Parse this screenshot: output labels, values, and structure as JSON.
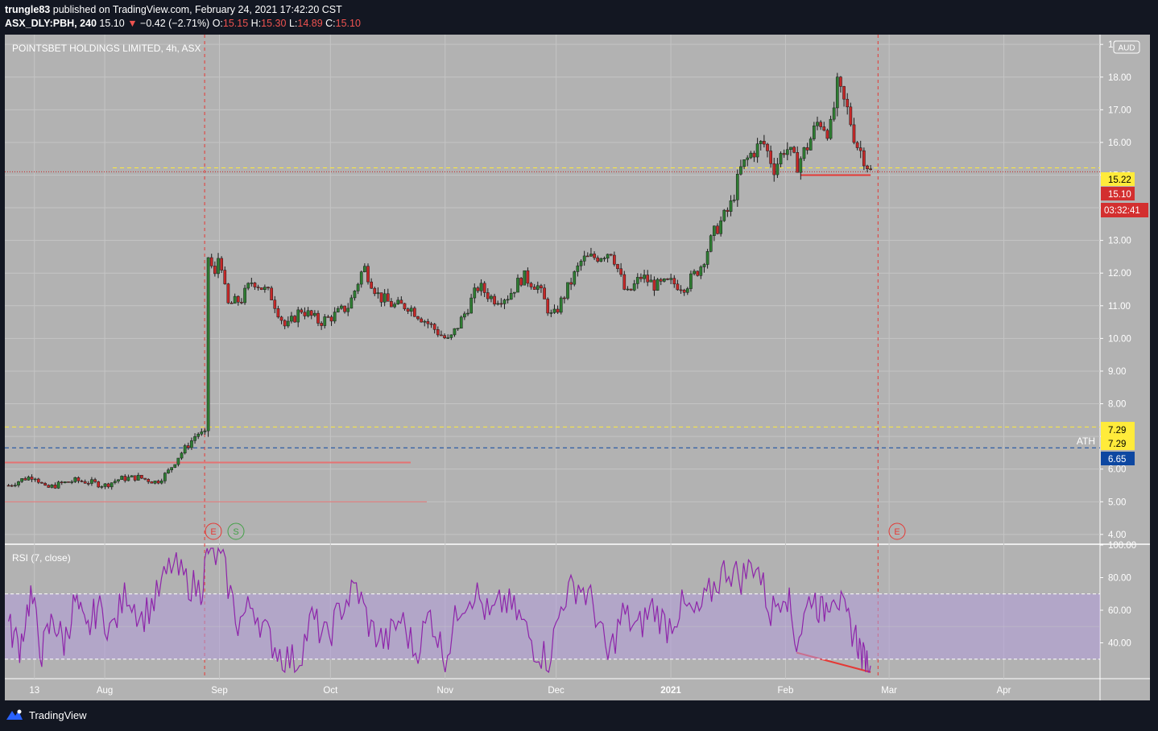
{
  "header": {
    "publisher": "trungle83",
    "published_text": "published on TradingView.com, February 24, 2021 17:42:20 CST",
    "symbol": "ASX_DLY:PBH, 240",
    "last": "15.10",
    "change": "−0.42 (−2.71%)",
    "o_label": "O:",
    "o_val": "15.15",
    "h_label": "H:",
    "h_val": "15.30",
    "l_label": "L:",
    "l_val": "14.89",
    "c_label": "C:",
    "c_val": "15.10"
  },
  "legend": {
    "main": "POINTSBET HOLDINGS LIMITED, 4h, ASX",
    "rsi": "RSI (7, close)",
    "currency": "AUD",
    "ath": "ATH"
  },
  "events": {
    "earnings": "E",
    "split": "S"
  },
  "badges": {
    "level_high": "15.22",
    "last_price": "15.10",
    "countdown": "03:32:41",
    "level_low_1": "7.29",
    "level_low_2": "7.29",
    "ath_level": "6.65"
  },
  "footer": {
    "brand": "TradingView"
  },
  "colors": {
    "background": "#b2b2b2",
    "up": "#2e7d32",
    "down": "#c62828",
    "rsi_line": "#8e24aa",
    "rsi_band": "#b39ddb",
    "yellow": "#ffeb3b",
    "red_badge": "#d32f2f",
    "blue_badge": "#0d47a1"
  },
  "chart_data": [
    {
      "type": "candlestick",
      "title": "POINTSBET HOLDINGS LIMITED, 4h, ASX",
      "y_ticks": [
        "19.00",
        "18.00",
        "17.00",
        "16.00",
        "15.00",
        "14.00",
        "13.00",
        "12.00",
        "11.00",
        "10.00",
        "9.00",
        "8.00",
        "7.00",
        "6.00",
        "5.00",
        "4.00"
      ],
      "ylim": [
        3.7,
        19.3
      ],
      "x_ticks": [
        "13",
        "Aug",
        "Sep",
        "Oct",
        "Nov",
        "Dec",
        "2021",
        "Feb",
        "Mar",
        "Apr"
      ],
      "x_dates": [
        "2020-07-13",
        "2020-08-01",
        "2020-09-01",
        "2020-10-01",
        "2020-11-01",
        "2020-12-01",
        "2021-01-01",
        "2021-02-01",
        "2021-03-01",
        "2021-04-01"
      ],
      "xlim": [
        "2020-07-05",
        "2021-04-27"
      ],
      "close_path": [
        [
          "2020-07-06",
          5.5
        ],
        [
          "2020-07-10",
          5.7
        ],
        [
          "2020-07-13",
          5.8
        ],
        [
          "2020-07-16",
          5.4
        ],
        [
          "2020-07-20",
          5.55
        ],
        [
          "2020-07-24",
          5.65
        ],
        [
          "2020-07-28",
          5.6
        ],
        [
          "2020-08-01",
          5.5
        ],
        [
          "2020-08-05",
          5.7
        ],
        [
          "2020-08-10",
          5.75
        ],
        [
          "2020-08-15",
          5.6
        ],
        [
          "2020-08-18",
          5.9
        ],
        [
          "2020-08-21",
          6.4
        ],
        [
          "2020-08-24",
          6.8
        ],
        [
          "2020-08-26",
          7.1
        ],
        [
          "2020-08-28",
          7.05
        ],
        [
          "2020-08-29",
          12.5
        ],
        [
          "2020-08-31",
          11.8
        ],
        [
          "2020-09-01",
          12.8
        ],
        [
          "2020-09-03",
          11.0
        ],
        [
          "2020-09-07",
          11.2
        ],
        [
          "2020-09-10",
          11.8
        ],
        [
          "2020-09-15",
          11.3
        ],
        [
          "2020-09-19",
          10.3
        ],
        [
          "2020-09-23",
          10.9
        ],
        [
          "2020-09-28",
          10.5
        ],
        [
          "2020-10-02",
          10.7
        ],
        [
          "2020-10-06",
          11.0
        ],
        [
          "2020-10-10",
          12.2
        ],
        [
          "2020-10-14",
          11.3
        ],
        [
          "2020-10-18",
          11.0
        ],
        [
          "2020-10-22",
          11.0
        ],
        [
          "2020-10-26",
          10.6
        ],
        [
          "2020-10-30",
          10.2
        ],
        [
          "2020-11-02",
          9.9
        ],
        [
          "2020-11-06",
          10.7
        ],
        [
          "2020-11-10",
          11.6
        ],
        [
          "2020-11-14",
          11.2
        ],
        [
          "2020-11-18",
          11.3
        ],
        [
          "2020-11-22",
          11.9
        ],
        [
          "2020-11-26",
          11.6
        ],
        [
          "2020-11-30",
          10.6
        ],
        [
          "2020-12-04",
          11.5
        ],
        [
          "2020-12-08",
          12.4
        ],
        [
          "2020-12-12",
          12.5
        ],
        [
          "2020-12-16",
          12.7
        ],
        [
          "2020-12-20",
          11.3
        ],
        [
          "2020-12-24",
          11.9
        ],
        [
          "2020-12-28",
          11.6
        ],
        [
          "2021-01-01",
          11.7
        ],
        [
          "2021-01-05",
          11.6
        ],
        [
          "2021-01-09",
          12.2
        ],
        [
          "2021-01-13",
          13.3
        ],
        [
          "2021-01-17",
          14.0
        ],
        [
          "2021-01-20",
          15.2
        ],
        [
          "2021-01-23",
          15.7
        ],
        [
          "2021-01-26",
          16.0
        ],
        [
          "2021-01-29",
          15.2
        ],
        [
          "2021-02-01",
          15.9
        ],
        [
          "2021-02-04",
          15.3
        ],
        [
          "2021-02-07",
          15.9
        ],
        [
          "2021-02-10",
          16.7
        ],
        [
          "2021-02-13",
          16.3
        ],
        [
          "2021-02-15",
          17.7
        ],
        [
          "2021-02-18",
          16.9
        ],
        [
          "2021-02-20",
          16.0
        ],
        [
          "2021-02-22",
          15.6
        ],
        [
          "2021-02-24",
          15.1
        ]
      ],
      "levels": [
        15.22,
        15.1,
        7.29,
        6.65,
        6.2,
        5.0
      ]
    },
    {
      "type": "line",
      "title": "RSI (7, close)",
      "y_ticks": [
        "100.00",
        "80.00",
        "60.00",
        "40.00"
      ],
      "ylim": [
        18,
        100
      ],
      "band": [
        30,
        70
      ],
      "values": [
        [
          "2020-07-06",
          50
        ],
        [
          "2020-07-09",
          38
        ],
        [
          "2020-07-12",
          70
        ],
        [
          "2020-07-15",
          34
        ],
        [
          "2020-07-18",
          55
        ],
        [
          "2020-07-21",
          40
        ],
        [
          "2020-07-24",
          66
        ],
        [
          "2020-07-27",
          45
        ],
        [
          "2020-07-30",
          62
        ],
        [
          "2020-08-03",
          48
        ],
        [
          "2020-08-07",
          72
        ],
        [
          "2020-08-11",
          55
        ],
        [
          "2020-08-15",
          68
        ],
        [
          "2020-08-19",
          88
        ],
        [
          "2020-08-23",
          78
        ],
        [
          "2020-08-27",
          72
        ],
        [
          "2020-08-29",
          98
        ],
        [
          "2020-09-02",
          88
        ],
        [
          "2020-09-06",
          52
        ],
        [
          "2020-09-10",
          64
        ],
        [
          "2020-09-14",
          44
        ],
        [
          "2020-09-18",
          32
        ],
        [
          "2020-09-22",
          28
        ],
        [
          "2020-09-26",
          55
        ],
        [
          "2020-09-30",
          42
        ],
        [
          "2020-10-04",
          62
        ],
        [
          "2020-10-08",
          74
        ],
        [
          "2020-10-12",
          48
        ],
        [
          "2020-10-16",
          40
        ],
        [
          "2020-10-20",
          55
        ],
        [
          "2020-10-24",
          34
        ],
        [
          "2020-10-28",
          58
        ],
        [
          "2020-11-01",
          30
        ],
        [
          "2020-11-05",
          64
        ],
        [
          "2020-11-09",
          72
        ],
        [
          "2020-11-13",
          55
        ],
        [
          "2020-11-17",
          66
        ],
        [
          "2020-11-21",
          56
        ],
        [
          "2020-11-25",
          38
        ],
        [
          "2020-11-29",
          30
        ],
        [
          "2020-12-03",
          68
        ],
        [
          "2020-12-07",
          76
        ],
        [
          "2020-12-11",
          64
        ],
        [
          "2020-12-15",
          30
        ],
        [
          "2020-12-19",
          58
        ],
        [
          "2020-12-23",
          48
        ],
        [
          "2020-12-27",
          62
        ],
        [
          "2020-12-31",
          50
        ],
        [
          "2021-01-04",
          62
        ],
        [
          "2021-01-08",
          56
        ],
        [
          "2021-01-12",
          72
        ],
        [
          "2021-01-16",
          86
        ],
        [
          "2021-01-20",
          80
        ],
        [
          "2021-01-24",
          90
        ],
        [
          "2021-01-28",
          58
        ],
        [
          "2021-02-01",
          75
        ],
        [
          "2021-02-04",
          40
        ],
        [
          "2021-02-08",
          70
        ],
        [
          "2021-02-11",
          58
        ],
        [
          "2021-02-14",
          74
        ],
        [
          "2021-02-17",
          56
        ],
        [
          "2021-02-20",
          44
        ],
        [
          "2021-02-22",
          30
        ],
        [
          "2021-02-24",
          26
        ]
      ]
    }
  ]
}
